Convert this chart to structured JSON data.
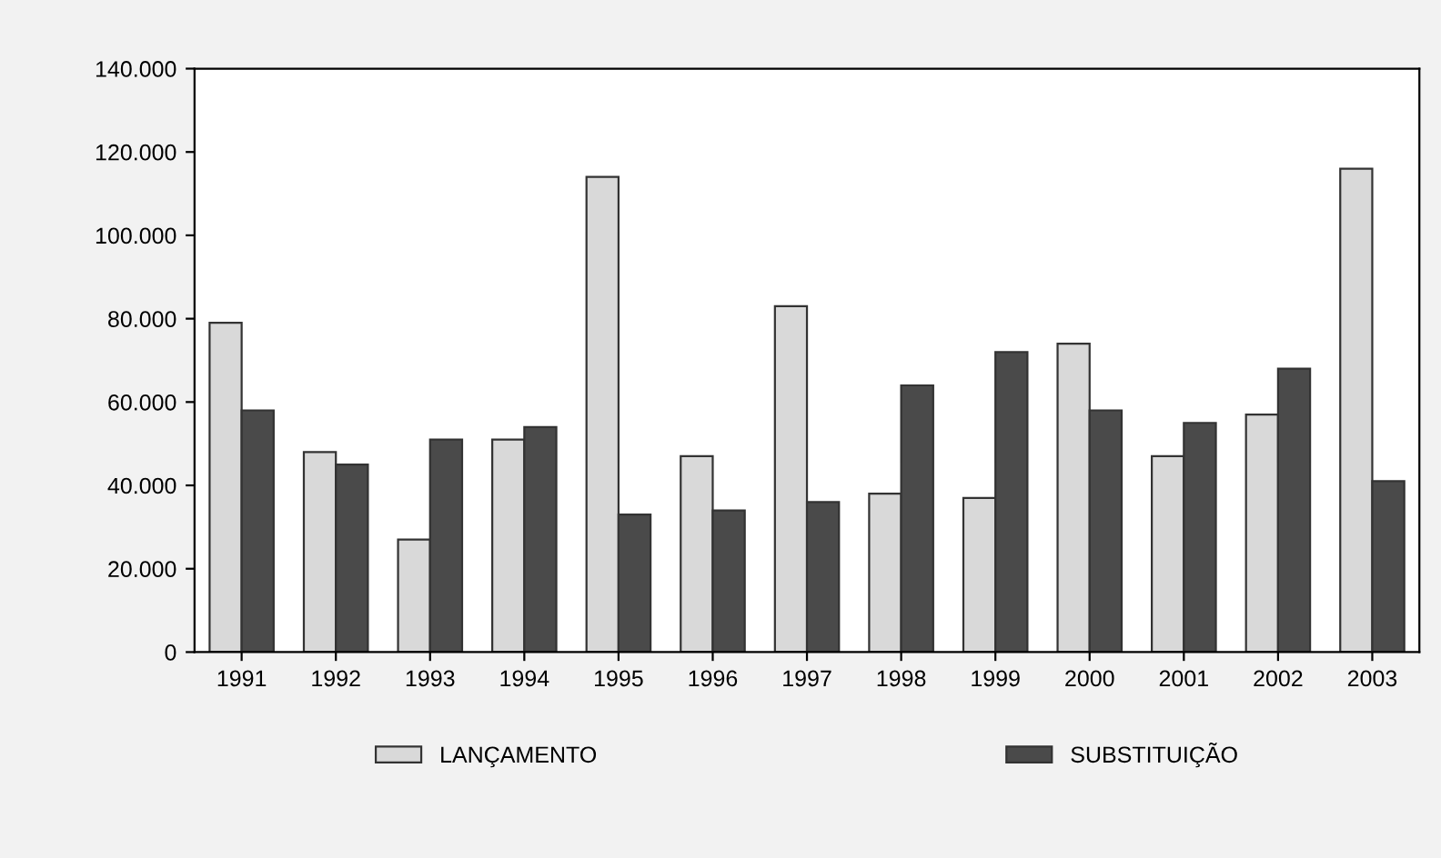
{
  "chart_data": {
    "type": "bar",
    "categories": [
      "1991",
      "1992",
      "1993",
      "1994",
      "1995",
      "1996",
      "1997",
      "1998",
      "1999",
      "2000",
      "2001",
      "2002",
      "2003"
    ],
    "series": [
      {
        "name": "LANÇAMENTO",
        "color": "#d9d9d9",
        "values": [
          79000,
          48000,
          27000,
          51000,
          114000,
          47000,
          83000,
          38000,
          37000,
          74000,
          47000,
          57000,
          116000
        ]
      },
      {
        "name": "SUBSTITUIÇÃO",
        "color": "#4a4a4a",
        "values": [
          58000,
          45000,
          51000,
          54000,
          33000,
          34000,
          36000,
          64000,
          72000,
          58000,
          55000,
          68000,
          41000
        ]
      }
    ],
    "ylim": [
      0,
      140000
    ],
    "yticks": [
      0,
      {
        "value": 20000,
        "label": "20.000"
      },
      {
        "value": 40000,
        "label": "40.000"
      },
      {
        "value": 60000,
        "label": "60.000"
      },
      {
        "value": 80000,
        "label": "80.000"
      },
      {
        "value": 100000,
        "label": "100.000"
      },
      {
        "value": 120000,
        "label": "120.000"
      },
      {
        "value": 140000,
        "label": "140.000"
      }
    ],
    "grid": false,
    "legend": "bottom"
  }
}
